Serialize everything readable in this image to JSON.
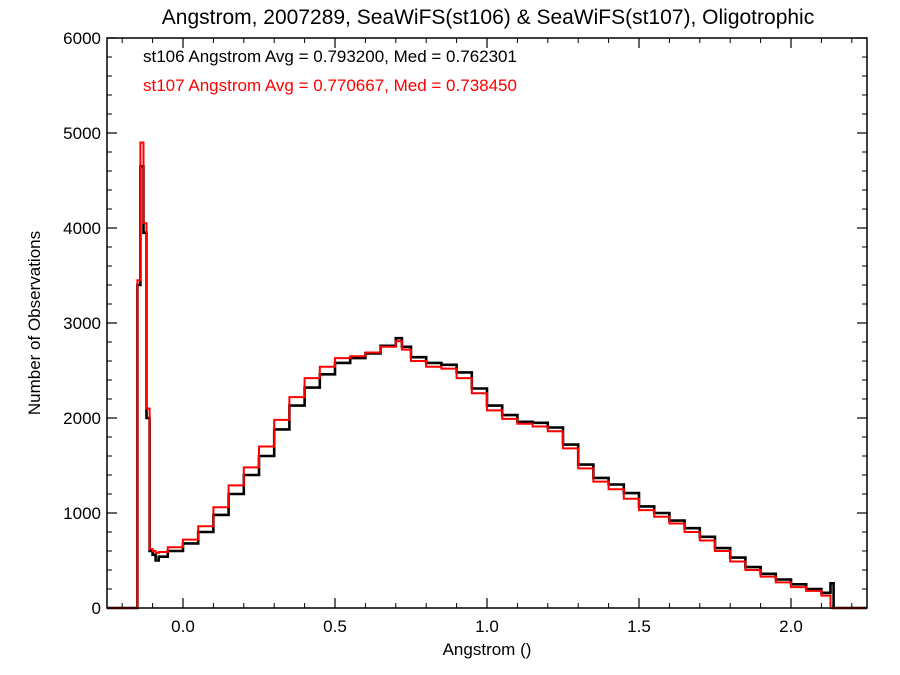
{
  "chart_data": {
    "type": "line",
    "title": "Angstrom, 2007289, SeaWiFS(st106) & SeaWiFS(st107), Oligotrophic",
    "xlabel": "Angstrom ()",
    "ylabel": "Number of Observations",
    "xlim": [
      -0.25,
      2.25
    ],
    "ylim": [
      0,
      6000
    ],
    "x_ticks": [
      0.0,
      0.5,
      1.0,
      1.5,
      2.0
    ],
    "x_tick_labels": [
      "0.0",
      "0.5",
      "1.0",
      "1.5",
      "2.0"
    ],
    "y_ticks": [
      0,
      1000,
      2000,
      3000,
      4000,
      5000,
      6000
    ],
    "y_tick_labels": [
      "0",
      "1000",
      "2000",
      "3000",
      "4000",
      "5000",
      "6000"
    ],
    "grid": false,
    "step_histogram": true,
    "annotations": [
      {
        "text": "st106 Angstrom Avg = 0.793200, Med = 0.762301",
        "color": "#000000"
      },
      {
        "text": "st107 Angstrom Avg = 0.770667, Med = 0.738450",
        "color": "#ff0000"
      }
    ],
    "series": [
      {
        "color": "#000000",
        "x": [
          -0.25,
          -0.16,
          -0.15,
          -0.14,
          -0.13,
          -0.12,
          -0.11,
          -0.1,
          -0.09,
          -0.08,
          -0.05,
          0.0,
          0.05,
          0.1,
          0.15,
          0.2,
          0.25,
          0.3,
          0.35,
          0.4,
          0.45,
          0.5,
          0.55,
          0.6,
          0.65,
          0.7,
          0.72,
          0.75,
          0.8,
          0.85,
          0.9,
          0.95,
          1.0,
          1.05,
          1.1,
          1.15,
          1.2,
          1.25,
          1.3,
          1.35,
          1.4,
          1.45,
          1.5,
          1.55,
          1.6,
          1.65,
          1.7,
          1.75,
          1.8,
          1.85,
          1.9,
          1.95,
          2.0,
          2.05,
          2.1,
          2.13,
          2.14,
          2.25
        ],
        "values": [
          0,
          0,
          3400,
          4650,
          3950,
          2000,
          600,
          560,
          500,
          540,
          600,
          680,
          800,
          980,
          1200,
          1400,
          1600,
          1880,
          2130,
          2320,
          2460,
          2580,
          2630,
          2680,
          2760,
          2840,
          2750,
          2640,
          2580,
          2560,
          2480,
          2310,
          2130,
          2030,
          1960,
          1950,
          1900,
          1720,
          1510,
          1370,
          1300,
          1210,
          1070,
          1000,
          920,
          840,
          750,
          630,
          530,
          430,
          360,
          300,
          250,
          200,
          160,
          260,
          0,
          0
        ]
      },
      {
        "color": "#ff0000",
        "x": [
          -0.25,
          -0.16,
          -0.15,
          -0.14,
          -0.13,
          -0.12,
          -0.11,
          -0.1,
          -0.09,
          -0.08,
          -0.05,
          0.0,
          0.05,
          0.1,
          0.15,
          0.2,
          0.25,
          0.3,
          0.35,
          0.4,
          0.45,
          0.5,
          0.55,
          0.6,
          0.65,
          0.7,
          0.72,
          0.75,
          0.8,
          0.85,
          0.9,
          0.95,
          1.0,
          1.05,
          1.1,
          1.15,
          1.2,
          1.25,
          1.3,
          1.35,
          1.4,
          1.45,
          1.5,
          1.55,
          1.6,
          1.65,
          1.7,
          1.75,
          1.8,
          1.85,
          1.9,
          1.95,
          2.0,
          2.05,
          2.1,
          2.13,
          2.14,
          2.25
        ],
        "values": [
          0,
          0,
          3450,
          4900,
          4050,
          2100,
          620,
          600,
          580,
          590,
          640,
          720,
          860,
          1060,
          1290,
          1480,
          1700,
          1980,
          2220,
          2420,
          2540,
          2630,
          2650,
          2690,
          2750,
          2810,
          2720,
          2600,
          2540,
          2520,
          2420,
          2260,
          2080,
          1990,
          1940,
          1910,
          1860,
          1680,
          1470,
          1330,
          1250,
          1150,
          1030,
          960,
          890,
          800,
          710,
          600,
          490,
          400,
          330,
          270,
          220,
          180,
          130,
          0,
          0,
          0
        ]
      }
    ]
  }
}
